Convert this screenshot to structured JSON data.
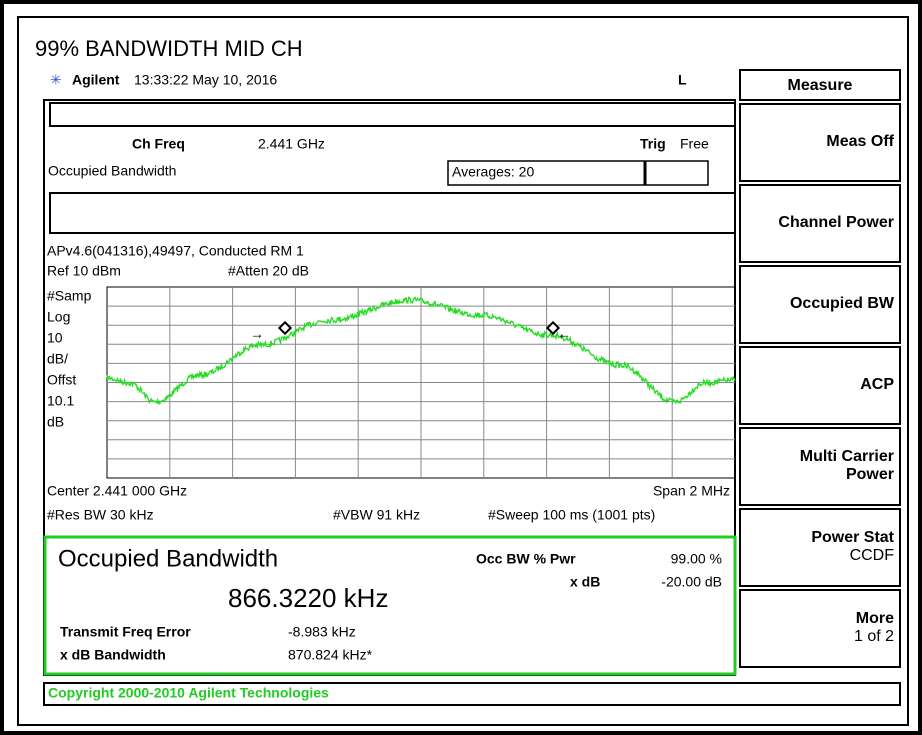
{
  "title": "99% BANDWIDTH MID CH",
  "header": {
    "brand": "Agilent",
    "time": "13:33:22  May 10, 2016",
    "mode": "L"
  },
  "meas": {
    "ch_freq_label": "Ch Freq",
    "ch_freq": "2.441 GHz",
    "trig_label": "Trig",
    "trig": "Free",
    "name": "Occupied Bandwidth",
    "averages": "Averages: 20",
    "info": "APv4.6(041316),49497, Conducted RM 1"
  },
  "graph": {
    "ref": "Ref 10 dBm",
    "atten": "#Atten 20 dB",
    "left_labels": [
      "#Samp",
      "Log",
      "10",
      "dB/",
      "Offst",
      "10.1",
      "dB"
    ],
    "center": "Center 2.441 000 GHz",
    "span": "Span 2 MHz",
    "rbw": "#Res BW 30 kHz",
    "vbw": "#VBW 91 kHz",
    "sweep": "#Sweep 100 ms (1001 pts)"
  },
  "results": {
    "title": "Occupied Bandwidth",
    "value": "866.3220 kHz",
    "occ_label": "Occ BW % Pwr",
    "occ_value": "99.00 %",
    "xdb_label": "x dB",
    "xdb_value": "-20.00 dB",
    "tfe_label": "Transmit Freq Error",
    "tfe_value": "-8.983 kHz",
    "xbw_label": "x dB Bandwidth",
    "xbw_value": "870.824 kHz*"
  },
  "copyright": "Copyright 2000-2010 Agilent Technologies",
  "softkeys": {
    "header": "Measure",
    "keys": [
      [
        "Meas Off"
      ],
      [
        "Channel Power"
      ],
      [
        "Occupied BW"
      ],
      [
        "ACP"
      ],
      [
        "Multi Carrier",
        "Power"
      ],
      [
        "Power Stat",
        "CCDF"
      ],
      [
        "More",
        "1 of 2"
      ]
    ]
  }
}
